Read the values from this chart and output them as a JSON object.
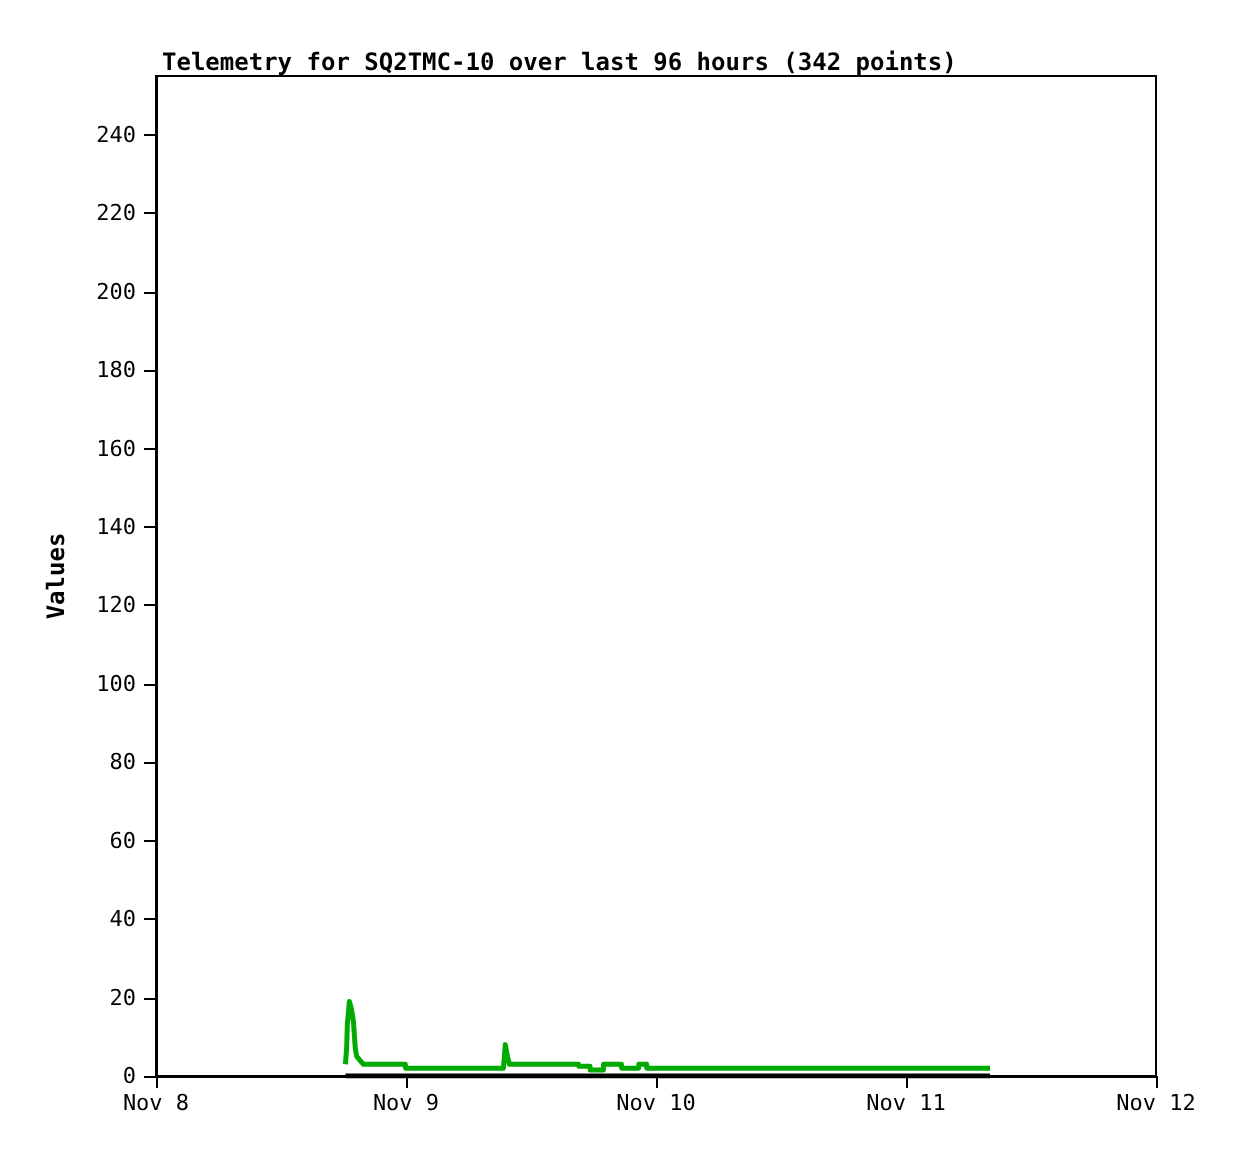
{
  "chart_data": {
    "type": "line",
    "title": "Telemetry for SQ2TMC-10 over last 96 hours (342 points)",
    "ylabel": "Values",
    "xlim": [
      "--11-08",
      "--11-12"
    ],
    "xticks": [
      {
        "value": "--11-08",
        "label": "Nov 8"
      },
      {
        "value": "--11-09",
        "label": "Nov 9"
      },
      {
        "value": "--11-10",
        "label": "Nov 10"
      },
      {
        "value": "--11-11",
        "label": "Nov 11"
      },
      {
        "value": "--11-12",
        "label": "Nov 12"
      }
    ],
    "ylim": [
      0,
      255
    ],
    "yticks": [
      0,
      20,
      40,
      60,
      80,
      100,
      120,
      140,
      160,
      180,
      200,
      220,
      240
    ],
    "grid": false,
    "marker": "none",
    "line_style": "solid",
    "series": [
      {
        "color": "#00aa00",
        "x": [
          "--11-08T18:11",
          "--11-08T18:18",
          "--11-08T18:22",
          "--11-08T18:34",
          "--11-08T18:46",
          "--11-08T18:57",
          "--11-08T19:08",
          "--11-08T19:16",
          "--11-08T19:35",
          "--11-08T19:55",
          "--11-08T23:56",
          "--11-08T23:57",
          "--11-09T09:21",
          "--11-09T09:25",
          "--11-09T09:32",
          "--11-09T09:44",
          "--11-09T09:56",
          "--11-09T16:34",
          "--11-09T16:35",
          "--11-09T17:40",
          "--11-09T17:41",
          "--11-09T18:57",
          "--11-09T18:58",
          "--11-09T20:41",
          "--11-09T20:42",
          "--11-09T22:20",
          "--11-09T22:21",
          "--11-09T23:06",
          "--11-09T23:07",
          "--11-11T08:04"
        ],
        "values": [
          3,
          7,
          13,
          19,
          17,
          14,
          7,
          5,
          4,
          3,
          3,
          2,
          2,
          4,
          8,
          5,
          3,
          3,
          2.5,
          2.5,
          1.5,
          1.5,
          3,
          3,
          2,
          2,
          3,
          3,
          2,
          2
        ]
      },
      {
        "color": "#000000",
        "x": [
          "--11-08T18:11",
          "--11-11T08:04"
        ],
        "values": [
          0,
          0
        ]
      }
    ]
  }
}
